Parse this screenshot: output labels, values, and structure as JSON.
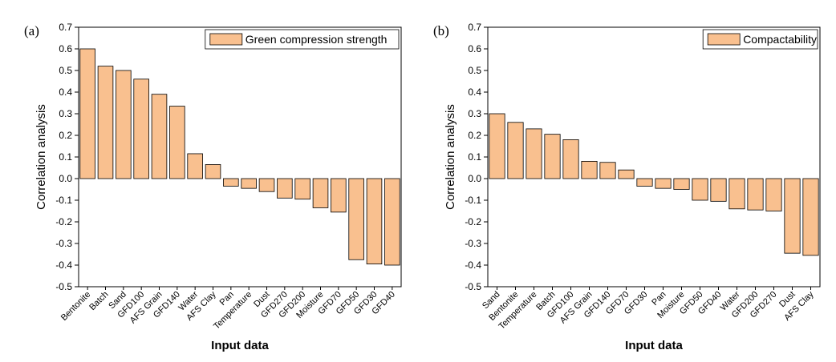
{
  "chart_data": [
    {
      "type": "bar",
      "panel_label": "(a)",
      "x_label": "Input data",
      "y_label": "Correlation analysis",
      "categories": [
        "Bentonite",
        "Batch",
        "Sand",
        "GFD100",
        "AFS Grain",
        "GFD140",
        "Water",
        "AFS Clay",
        "Pan",
        "Temperature",
        "Dust",
        "GFD270",
        "GFD200",
        "Moisture",
        "GFD70",
        "GFD50",
        "GFD30",
        "GFD40"
      ],
      "series": [
        {
          "name": "Green compression strength",
          "color": "#f9c08f",
          "values": [
            0.6,
            0.52,
            0.5,
            0.46,
            0.39,
            0.335,
            0.115,
            0.065,
            -0.035,
            -0.045,
            -0.06,
            -0.09,
            -0.095,
            -0.135,
            -0.155,
            -0.375,
            -0.395,
            -0.4
          ]
        }
      ],
      "ylim": [
        -0.5,
        0.7
      ],
      "yticks": [
        -0.5,
        -0.4,
        -0.3,
        -0.2,
        -0.1,
        {
          "value": 0,
          "label": "0.0"
        },
        0.1,
        0.2,
        0.3,
        0.4,
        0.5,
        0.6,
        0.7
      ],
      "legend": "upper right"
    },
    {
      "type": "bar",
      "panel_label": "(b)",
      "x_label": "Input data",
      "y_label": "Correlation analysis",
      "categories": [
        "Sand",
        "Bentonite",
        "Temperature",
        "Batch",
        "GFD100",
        "AFS Grain",
        "GFD140",
        "GFD70",
        "GFD30",
        "Pan",
        "Moisture",
        "GFD50",
        "GFD40",
        "Water",
        "GFD200",
        "GFD270",
        "Dust",
        "AFS Clay"
      ],
      "series": [
        {
          "name": "Compactability",
          "color": "#f9c08f",
          "values": [
            0.3,
            0.26,
            0.23,
            0.205,
            0.18,
            0.08,
            0.075,
            0.04,
            -0.035,
            -0.045,
            -0.05,
            -0.1,
            -0.105,
            -0.14,
            -0.145,
            -0.15,
            -0.345,
            -0.355
          ]
        }
      ],
      "ylim": [
        -0.5,
        0.7
      ],
      "yticks": [
        -0.5,
        -0.4,
        -0.3,
        -0.2,
        -0.1,
        {
          "value": 0,
          "label": "0.0"
        },
        0.1,
        0.2,
        0.3,
        0.4,
        0.5,
        0.6,
        0.7
      ],
      "legend": "upper right"
    }
  ]
}
